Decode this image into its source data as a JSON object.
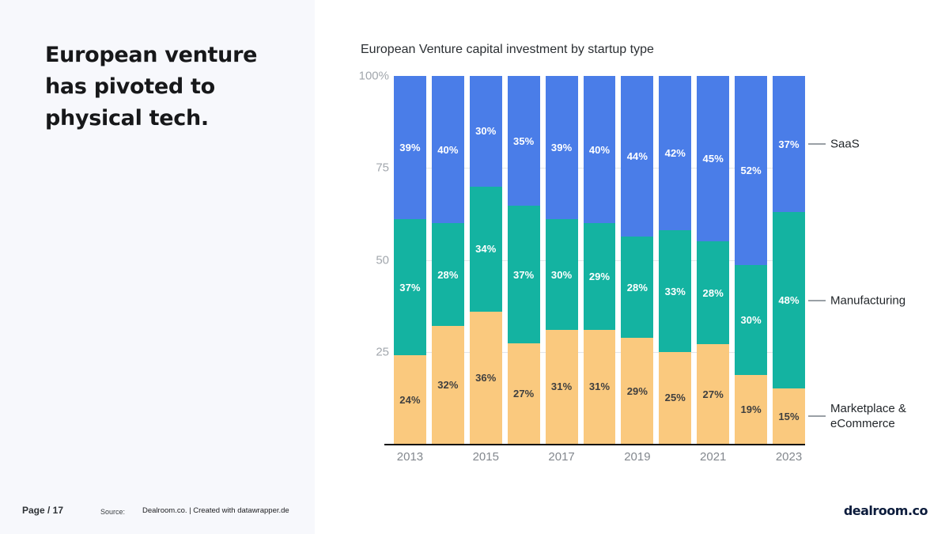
{
  "slide": {
    "headline": "European venture\nhas pivoted to\nphysical tech.",
    "page_label": "Page / 17",
    "source_label": "Source:",
    "source_text": "Dealroom.co. | Created with datawrapper.de",
    "brand_logo": "dealroom.co"
  },
  "chart_data": {
    "type": "bar",
    "stacked": true,
    "title": "European Venture capital investment by startup type",
    "x": [
      2013,
      2014,
      2015,
      2016,
      2017,
      2018,
      2019,
      2020,
      2021,
      2022,
      2023
    ],
    "x_tick_labels": [
      "2013",
      "2015",
      "2017",
      "2019",
      "2021",
      "2023"
    ],
    "x_tick_every": 2,
    "series": [
      {
        "name": "SaaS",
        "color": "#4a7de8",
        "label_color": "#ffffff",
        "values": [
          39,
          40,
          30,
          35,
          39,
          40,
          44,
          42,
          45,
          52,
          37
        ]
      },
      {
        "name": "Manufacturing",
        "color": "#14b3a1",
        "label_color": "#ffffff",
        "values": [
          37,
          28,
          34,
          37,
          30,
          29,
          28,
          33,
          28,
          30,
          48
        ]
      },
      {
        "name": "Marketplace & eCommerce",
        "color": "#fac97e",
        "label_color": "#3f3f3f",
        "values": [
          24,
          32,
          36,
          27,
          31,
          31,
          29,
          25,
          27,
          19,
          15
        ]
      }
    ],
    "y_ticks": [
      {
        "label": "100%",
        "value": 100
      },
      {
        "label": "75",
        "value": 75
      },
      {
        "label": "50",
        "value": 50
      },
      {
        "label": "25",
        "value": 25
      }
    ],
    "ylim": [
      0,
      100
    ],
    "value_suffix": "%",
    "grid": true,
    "legend_position": "right"
  }
}
